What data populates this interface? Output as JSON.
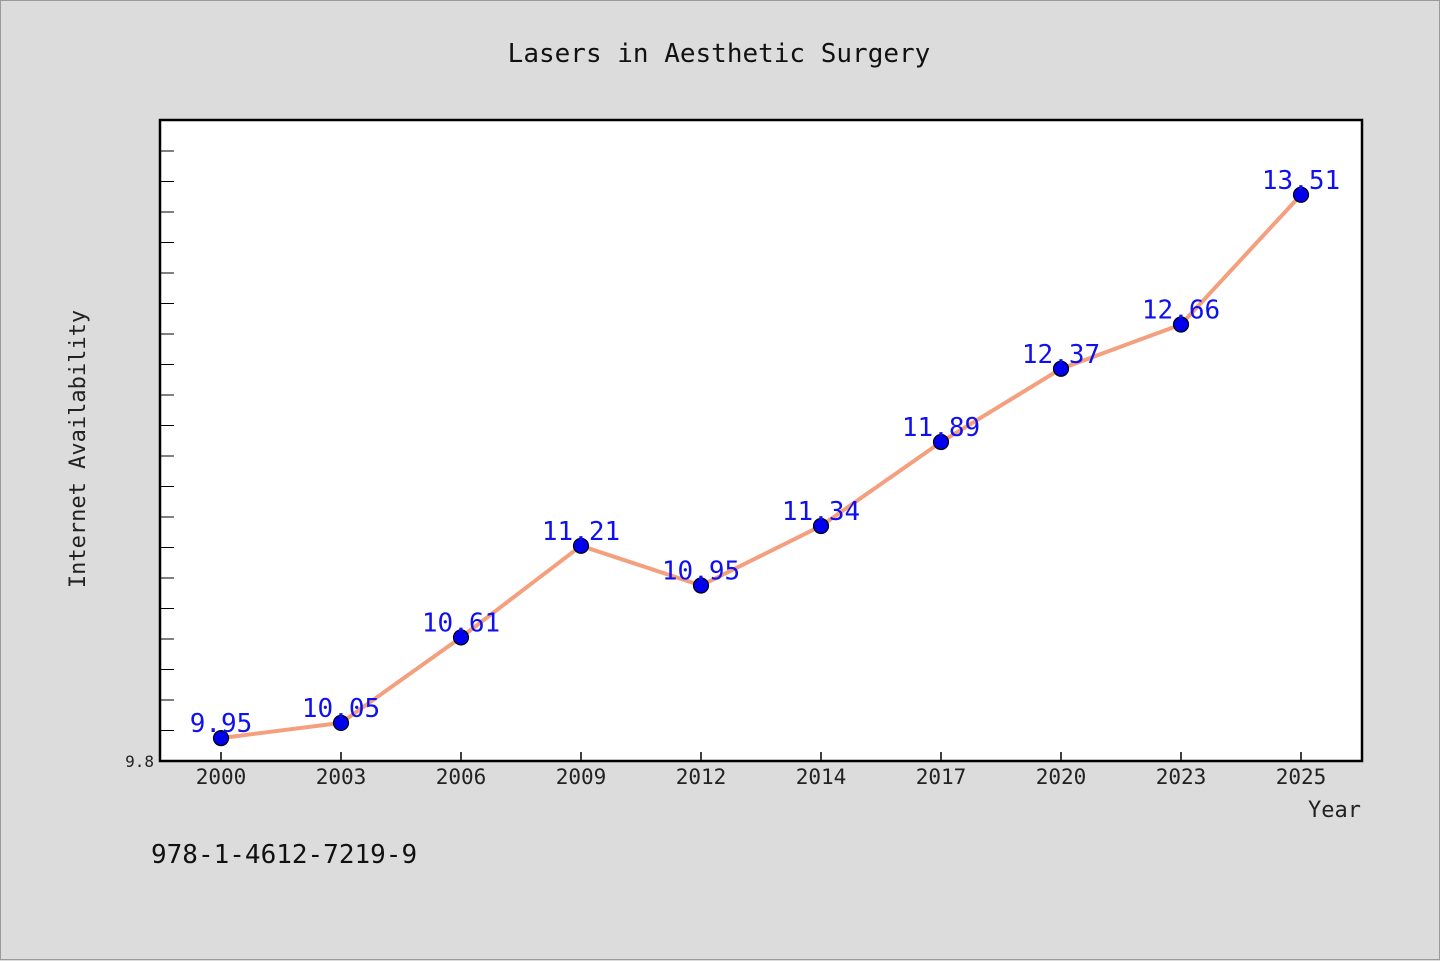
{
  "chart_data": {
    "type": "line",
    "title": "Lasers in Aesthetic Surgery",
    "xlabel": "Year",
    "ylabel": "Internet Availability",
    "categories": [
      "2000",
      "2003",
      "2006",
      "2009",
      "2012",
      "2014",
      "2017",
      "2020",
      "2023",
      "2025"
    ],
    "series": [
      {
        "values": [
          9.95,
          10.05,
          10.61,
          11.21,
          10.95,
          11.34,
          11.89,
          12.37,
          12.66,
          13.51
        ],
        "labels": [
          "9.95",
          "10.05",
          "10.61",
          "11.21",
          "10.95",
          "11.34",
          "11.89",
          "12.37",
          "12.66",
          "13.51"
        ]
      }
    ],
    "ylim": [
      9.8,
      14.0
    ],
    "y_tick_labels": [
      "9.8"
    ],
    "grid": false,
    "line_color": "#f4a07f",
    "marker_color": "#0000ee",
    "label_color": "#1010ee"
  },
  "footer": {
    "isbn": "978-1-4612-7219-9"
  },
  "colors": {
    "background": "#dcdcdc",
    "plot_background": "#ffffff"
  }
}
